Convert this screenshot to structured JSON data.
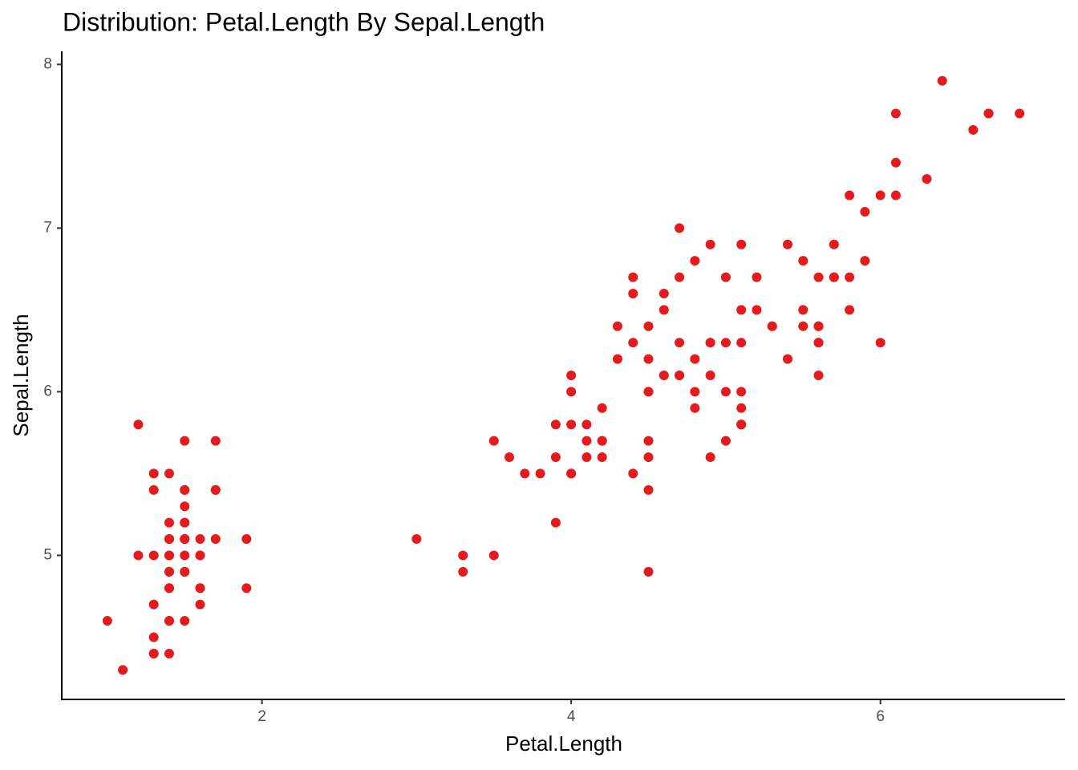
{
  "chart_data": {
    "type": "scatter",
    "title": "Distribution: Petal.Length By Sepal.Length",
    "x_label": "Petal.Length",
    "y_label": "Sepal.Length",
    "color": "#e41a1c",
    "xlim": [
      0.705,
      7.195
    ],
    "ylim": [
      4.12,
      8.08
    ],
    "xticks": [
      2,
      4,
      6
    ],
    "yticks": [
      5,
      6,
      7,
      8
    ],
    "grid": false,
    "x": [
      1.4,
      1.4,
      1.3,
      1.5,
      1.4,
      1.7,
      1.4,
      1.5,
      1.4,
      1.5,
      1.5,
      1.6,
      1.4,
      1.1,
      1.2,
      1.5,
      1.3,
      1.4,
      1.7,
      1.5,
      1.7,
      1.5,
      1.0,
      1.7,
      1.9,
      1.6,
      1.6,
      1.5,
      1.4,
      1.6,
      1.6,
      1.5,
      1.5,
      1.4,
      1.5,
      1.2,
      1.3,
      1.4,
      1.3,
      1.5,
      1.3,
      1.3,
      1.3,
      1.6,
      1.9,
      1.4,
      1.6,
      1.4,
      1.5,
      1.4,
      4.7,
      4.5,
      4.9,
      4.0,
      4.6,
      4.5,
      4.7,
      3.3,
      4.6,
      3.9,
      3.5,
      4.2,
      4.0,
      4.7,
      3.6,
      4.4,
      4.5,
      4.1,
      4.5,
      3.9,
      4.8,
      4.0,
      4.9,
      4.7,
      4.3,
      4.4,
      4.8,
      5.0,
      4.5,
      3.5,
      3.8,
      3.7,
      3.9,
      5.1,
      4.5,
      4.5,
      4.7,
      4.4,
      4.1,
      4.0,
      4.4,
      4.6,
      4.0,
      3.3,
      4.2,
      4.2,
      4.2,
      4.3,
      3.0,
      4.1,
      6.0,
      5.1,
      5.9,
      5.6,
      5.8,
      6.6,
      4.5,
      6.3,
      5.8,
      6.1,
      5.1,
      5.3,
      5.5,
      5.0,
      5.1,
      5.3,
      5.5,
      6.7,
      6.9,
      5.0,
      5.7,
      4.9,
      6.7,
      4.9,
      5.7,
      6.0,
      4.8,
      4.9,
      5.6,
      5.8,
      6.1,
      6.4,
      5.6,
      5.1,
      5.6,
      6.1,
      5.6,
      5.5,
      4.8,
      5.4,
      5.6,
      5.1,
      5.1,
      5.9,
      5.7,
      5.2,
      5.0,
      5.2,
      5.4,
      5.1
    ],
    "values": [
      5.1,
      4.9,
      4.7,
      4.6,
      5.0,
      5.4,
      4.6,
      5.0,
      4.4,
      4.9,
      5.4,
      4.8,
      4.8,
      4.3,
      5.8,
      5.7,
      5.4,
      5.1,
      5.7,
      5.1,
      5.4,
      5.1,
      4.6,
      5.1,
      4.8,
      5.0,
      5.0,
      5.2,
      5.2,
      4.7,
      4.8,
      5.4,
      5.2,
      5.5,
      4.9,
      5.0,
      5.5,
      4.9,
      4.4,
      5.1,
      5.0,
      4.5,
      4.4,
      5.0,
      5.1,
      4.8,
      5.1,
      4.6,
      5.3,
      5.0,
      7.0,
      6.4,
      6.9,
      5.5,
      6.5,
      5.7,
      6.3,
      4.9,
      6.6,
      5.2,
      5.0,
      5.9,
      6.0,
      6.1,
      5.6,
      6.7,
      5.6,
      5.8,
      6.2,
      5.6,
      5.9,
      6.1,
      6.3,
      6.1,
      6.4,
      6.6,
      6.8,
      6.7,
      6.0,
      5.7,
      5.5,
      5.5,
      5.8,
      6.0,
      5.4,
      6.0,
      6.7,
      6.3,
      5.6,
      5.5,
      5.5,
      6.1,
      5.8,
      5.0,
      5.6,
      5.7,
      5.7,
      6.2,
      5.1,
      5.7,
      6.3,
      5.8,
      7.1,
      6.3,
      6.5,
      7.6,
      4.9,
      7.3,
      6.7,
      7.2,
      6.5,
      6.4,
      6.8,
      5.7,
      5.8,
      6.4,
      6.5,
      7.7,
      7.7,
      6.0,
      6.9,
      5.6,
      7.7,
      6.3,
      6.7,
      7.2,
      6.2,
      6.1,
      6.4,
      7.2,
      7.4,
      7.9,
      6.4,
      6.3,
      6.1,
      7.7,
      6.3,
      6.4,
      6.0,
      6.9,
      6.7,
      6.9,
      5.8,
      6.8,
      6.7,
      6.7,
      6.3,
      6.5,
      6.2,
      5.9
    ]
  }
}
